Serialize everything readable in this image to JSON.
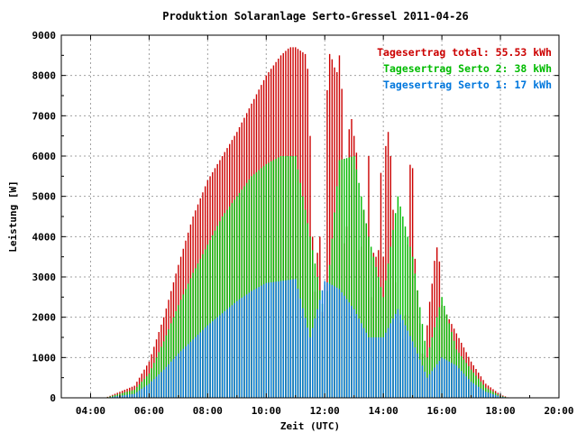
{
  "chart_data": {
    "type": "bar",
    "title": "Produktion Solaranlage Serto-Gressel 2011-04-26",
    "xlabel": "Zeit (UTC)",
    "ylabel": "Leistung [W]",
    "xlim": [
      3,
      20
    ],
    "ylim": [
      0,
      9000
    ],
    "x_ticks": [
      "04:00",
      "06:00",
      "08:00",
      "10:00",
      "12:00",
      "14:00",
      "16:00",
      "18:00",
      "20:00"
    ],
    "y_ticks": [
      "0",
      "1000",
      "2000",
      "3000",
      "4000",
      "5000",
      "6000",
      "7000",
      "8000",
      "9000"
    ],
    "grid": true,
    "legend_position": "top-right",
    "legend": [
      {
        "label": "Tagesertrag total: 55.53 kWh",
        "color": "#cc0000"
      },
      {
        "label": "Tagesertrag Serto 2: 38 kWh",
        "color": "#00bb00"
      },
      {
        "label": "Tagesertrag Serto 1: 17 kWh",
        "color": "#0077dd"
      }
    ],
    "series": [
      {
        "name": "Tagesertrag total: 55.53 kWh",
        "color": "#cc0000",
        "x": [
          4.5,
          5.5,
          6.0,
          6.5,
          7.0,
          7.5,
          8.0,
          8.5,
          9.0,
          9.5,
          10.0,
          10.5,
          10.8,
          11.0,
          11.2,
          11.4,
          11.5,
          11.6,
          11.7,
          11.8,
          11.9,
          12.0,
          12.1,
          12.2,
          12.3,
          12.4,
          12.5,
          12.6,
          12.7,
          12.8,
          12.9,
          13.0,
          13.1,
          13.2,
          13.3,
          13.4,
          13.5,
          13.6,
          13.7,
          13.8,
          13.9,
          14.0,
          14.1,
          14.2,
          14.3,
          14.4,
          14.5,
          14.6,
          14.7,
          14.8,
          14.9,
          15.0,
          15.1,
          15.2,
          15.3,
          15.4,
          15.5,
          15.6,
          15.7,
          15.8,
          15.9,
          16.0,
          16.5,
          17.0,
          17.5,
          18.0,
          18.3
        ],
        "values": [
          0,
          300,
          900,
          2000,
          3300,
          4500,
          5400,
          6000,
          6600,
          7300,
          8000,
          8500,
          8700,
          8700,
          8600,
          8500,
          6500,
          3500,
          2200,
          5000,
          2000,
          2800,
          8600,
          8500,
          8300,
          8000,
          8500,
          7500,
          2000,
          6500,
          7000,
          6500,
          6000,
          2500,
          5000,
          4000,
          6000,
          1800,
          4500,
          2500,
          6000,
          3500,
          6800,
          6500,
          5500,
          3000,
          2200,
          1800,
          1300,
          2800,
          5800,
          5700,
          3000,
          2500,
          1200,
          900,
          1800,
          2500,
          3000,
          3800,
          3600,
          2300,
          1600,
          900,
          350,
          80,
          0
        ]
      },
      {
        "name": "Tagesertrag Serto 2: 38 kWh",
        "color": "#00bb00",
        "x": [
          4.5,
          5.5,
          6.0,
          6.5,
          7.0,
          7.5,
          8.0,
          8.5,
          9.0,
          9.5,
          10.0,
          10.5,
          11.0,
          11.5,
          12.0,
          12.5,
          13.0,
          13.5,
          14.0,
          14.5,
          15.0,
          15.5,
          16.0,
          16.5,
          17.0,
          17.5,
          18.0,
          18.3
        ],
        "values": [
          0,
          200,
          600,
          1400,
          2300,
          3100,
          3800,
          4500,
          5000,
          5500,
          5800,
          6000,
          6000,
          4000,
          2000,
          5900,
          6000,
          4000,
          2500,
          5000,
          3500,
          1000,
          2500,
          1200,
          700,
          250,
          50,
          0
        ]
      },
      {
        "name": "Tagesertrag Serto 1: 17 kWh",
        "color": "#0077dd",
        "x": [
          4.5,
          5.5,
          6.0,
          6.5,
          7.0,
          7.5,
          8.0,
          8.5,
          9.0,
          9.5,
          10.0,
          10.5,
          11.0,
          11.5,
          12.0,
          12.5,
          13.0,
          13.5,
          14.0,
          14.5,
          15.0,
          15.5,
          16.0,
          16.5,
          17.0,
          17.5,
          18.0,
          18.3
        ],
        "values": [
          0,
          100,
          350,
          700,
          1100,
          1450,
          1800,
          2100,
          2400,
          2650,
          2850,
          2900,
          2950,
          1500,
          2900,
          2700,
          2200,
          1500,
          1500,
          2200,
          1400,
          500,
          1000,
          800,
          400,
          150,
          30,
          0
        ]
      }
    ]
  }
}
